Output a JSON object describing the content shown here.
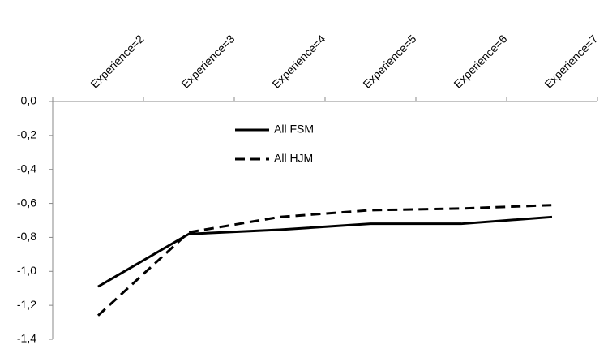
{
  "chart_data": {
    "type": "line",
    "categories": [
      "Experience=2",
      "Experience=3",
      "Experience=4",
      "Experience=5",
      "Experience=6",
      "Experience=7"
    ],
    "series": [
      {
        "name": "All FSM",
        "color": "#000000",
        "dashed": false,
        "values": [
          -1.09,
          -0.78,
          -0.755,
          -0.72,
          -0.72,
          -0.68
        ]
      },
      {
        "name": "All HJM",
        "color": "#000000",
        "dashed": true,
        "values": [
          -1.26,
          -0.77,
          -0.68,
          -0.64,
          -0.63,
          -0.61
        ]
      }
    ],
    "ylim": [
      -1.4,
      0
    ],
    "yticks": [
      {
        "value": 0,
        "label": "0,0"
      },
      {
        "value": -0.2,
        "label": "-0,2"
      },
      {
        "value": -0.4,
        "label": "-0,4"
      },
      {
        "value": -0.6,
        "label": "-0,6"
      },
      {
        "value": -0.8,
        "label": "-0,8"
      },
      {
        "value": -1.0,
        "label": "-1,0"
      },
      {
        "value": -1.2,
        "label": "-1,2"
      },
      {
        "value": -1.4,
        "label": "-1,4"
      }
    ],
    "legend": "upper-left"
  }
}
